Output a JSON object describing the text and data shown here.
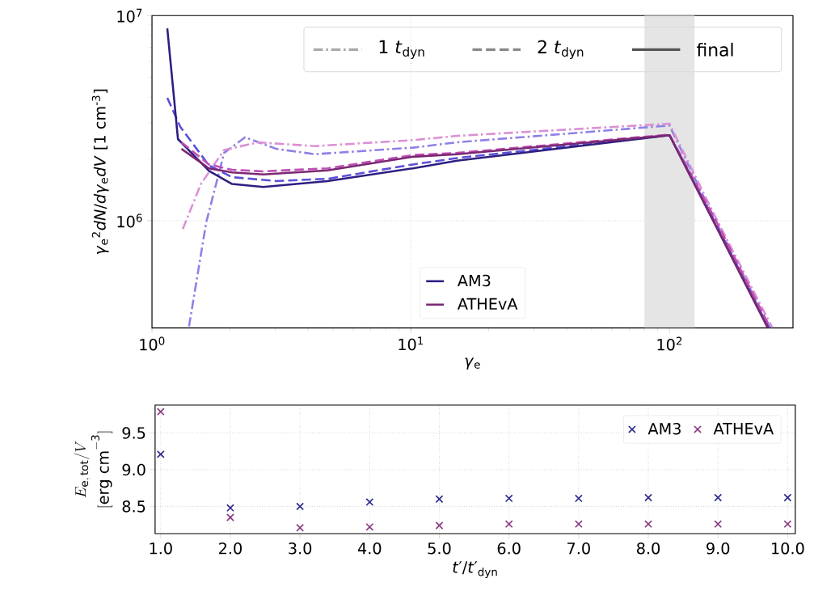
{
  "chart_data": [
    {
      "type": "line",
      "xlabel": "*γ*$_{e}$",
      "ylabel": "*γ*$_{e}$$^{2}$*dN*/*dγ*$_{e}$*dV* [1 cm$^{-3}$]",
      "annotations": [
        "1 *t*$_{dyn}$",
        "2 *t*$_{dyn}$",
        "final"
      ],
      "xlim": [
        1,
        300
      ],
      "ylim": [
        300000,
        10000000
      ],
      "xticks": [
        {
          "value": 1,
          "label": "10$^{0}$"
        },
        {
          "value": 10,
          "label": "10$^{1}$"
        },
        {
          "value": 100,
          "label": "10$^{2}$"
        }
      ],
      "yticks": [
        {
          "value": 1000000,
          "label": "10$^{6}$"
        },
        {
          "value": 10000000,
          "label": "10$^{7}$"
        }
      ],
      "log": "xy",
      "grid": true,
      "legend": "bottom",
      "bands": [
        {
          "axis": "x",
          "from": 80,
          "to": 125,
          "color": "#e5e5e5"
        }
      ],
      "series": [
        {
          "color": "#8e80e8",
          "line_style": "dashdot",
          "x": [
            1.39,
            1.62,
            1.9,
            2.29,
            3.02,
            4.26,
            10.2,
            15.1,
            100,
            150,
            245
          ],
          "values": [
            305000,
            980000,
            2140000,
            2550000,
            2240000,
            2110000,
            2270000,
            2410000,
            2910000,
            1000000,
            300000
          ]
        },
        {
          "color": "#5a4fd8",
          "line_style": "dashed",
          "x": [
            1.146,
            1.286,
            1.66,
            2.04,
            3.02,
            4.77,
            10.2,
            15.1,
            100,
            150,
            242
          ],
          "values": [
            3970000,
            2870000,
            1860000,
            1630000,
            1560000,
            1600000,
            1880000,
            2020000,
            2610000,
            980000,
            300000
          ]
        },
        {
          "name": "AM3",
          "color": "#2e1e80",
          "line_style": "solid",
          "x": [
            1.146,
            1.26,
            1.66,
            2.04,
            2.69,
            4.77,
            10.2,
            15.1,
            100,
            150,
            240
          ],
          "values": [
            8650000,
            2500000,
            1750000,
            1510000,
            1460000,
            1560000,
            1800000,
            1960000,
            2610000,
            960000,
            300000
          ]
        },
        {
          "color": "#dc90d4",
          "line_style": "dashdot",
          "x": [
            1.315,
            1.546,
            1.9,
            2.57,
            4.26,
            10.2,
            15.1,
            100,
            150,
            250
          ],
          "values": [
            910000,
            1510000,
            2210000,
            2410000,
            2310000,
            2470000,
            2590000,
            2970000,
            1050000,
            300000
          ]
        },
        {
          "color": "#c04db5",
          "line_style": "dashed",
          "x": [
            1.3,
            1.66,
            2.04,
            2.69,
            4.77,
            10.2,
            15.1,
            100,
            150,
            245
          ],
          "values": [
            2410000,
            1880000,
            1770000,
            1740000,
            1800000,
            2090000,
            2140000,
            2630000,
            1020000,
            300000
          ]
        },
        {
          "name": "ATHEvA",
          "color": "#7a2872",
          "line_style": "solid",
          "x": [
            1.3,
            1.66,
            2.04,
            2.69,
            4.77,
            10.2,
            15.1,
            100,
            150,
            240
          ],
          "values": [
            2240000,
            1800000,
            1720000,
            1680000,
            1760000,
            2050000,
            2110000,
            2610000,
            960000,
            300000
          ]
        }
      ]
    },
    {
      "type": "scatter",
      "xlabel": "*t*′/*t*′$_{dyn}$",
      "ylabel": "\\begin{array}{c}E_{\\mathrm{e,\\,tot}}/V\\\\ \\mathrm{[erg\\ cm^{-3}]}\\end{array}",
      "x": [
        1,
        2,
        3,
        4,
        5,
        6,
        7,
        8,
        9,
        10
      ],
      "xlim": [
        0.92,
        10.11
      ],
      "ylim": [
        8.13,
        9.88
      ],
      "xticks": [
        {
          "value": 1,
          "label": "1.0"
        },
        {
          "value": 2,
          "label": "2.0"
        },
        {
          "value": 3,
          "label": "3.0"
        },
        {
          "value": 4,
          "label": "4.0"
        },
        {
          "value": 5,
          "label": "5.0"
        },
        {
          "value": 6,
          "label": "6.0"
        },
        {
          "value": 7,
          "label": "7.0"
        },
        {
          "value": 8,
          "label": "8.0"
        },
        {
          "value": 9,
          "label": "9.0"
        },
        {
          "value": 10,
          "label": "10.0"
        }
      ],
      "yticks": [
        {
          "value": 8.5,
          "label": "8.5"
        },
        {
          "value": 9.0,
          "label": "9.0"
        },
        {
          "value": 9.5,
          "label": "9.5"
        }
      ],
      "grid": true,
      "legend": "top right",
      "marker": "cross",
      "series": [
        {
          "name": "AM3",
          "color": "#2e2a8a",
          "values": [
            9.21,
            8.48,
            8.5,
            8.56,
            8.6,
            8.61,
            8.61,
            8.62,
            8.62,
            8.62
          ]
        },
        {
          "name": "ATHEvA",
          "color": "#8a3a80",
          "values": [
            9.79,
            8.35,
            8.21,
            8.22,
            8.24,
            8.26,
            8.26,
            8.26,
            8.26,
            8.26
          ]
        }
      ]
    }
  ]
}
